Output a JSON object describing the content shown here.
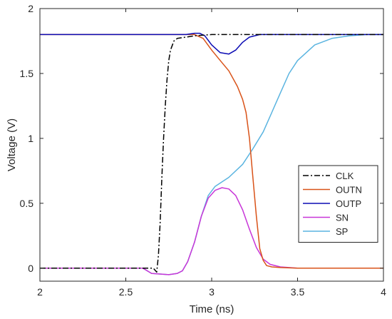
{
  "chart_data": {
    "type": "line",
    "title": "",
    "xlabel": "Time (ns)",
    "ylabel": "Voltage (V)",
    "xlim": [
      2,
      4
    ],
    "ylim": [
      -0.1,
      2
    ],
    "xticks": [
      2,
      2.5,
      3,
      3.5,
      4
    ],
    "xtick_labels": [
      "2",
      "2.5",
      "3",
      "3.5",
      "4"
    ],
    "yticks": [
      0,
      0.5,
      1,
      1.5,
      2
    ],
    "ytick_labels": [
      "0",
      "0.5",
      "1",
      "1.5",
      "2"
    ],
    "grid": false,
    "legend_position": "right",
    "series": [
      {
        "name": "CLK",
        "color": "#000000",
        "dash": "dashdot",
        "x": [
          2.0,
          2.6,
          2.62,
          2.66,
          2.68,
          2.69,
          2.7,
          2.71,
          2.72,
          2.73,
          2.74,
          2.75,
          2.76,
          2.78,
          2.8,
          2.85,
          2.9,
          3.0,
          3.1,
          3.2,
          3.3,
          3.35,
          3.4,
          4.0
        ],
        "y": [
          0.0,
          0.0,
          0.0,
          0.0,
          -0.03,
          0.1,
          0.35,
          0.7,
          1.0,
          1.25,
          1.45,
          1.6,
          1.68,
          1.75,
          1.77,
          1.78,
          1.79,
          1.8,
          1.8,
          1.8,
          1.8,
          1.8,
          1.8,
          1.8
        ]
      },
      {
        "name": "OUTN",
        "color": "#d95319",
        "dash": "solid",
        "x": [
          2.0,
          2.9,
          2.95,
          3.0,
          3.05,
          3.1,
          3.15,
          3.18,
          3.2,
          3.22,
          3.24,
          3.26,
          3.28,
          3.3,
          3.32,
          3.35,
          3.4,
          3.5,
          4.0
        ],
        "y": [
          1.8,
          1.8,
          1.77,
          1.68,
          1.6,
          1.52,
          1.4,
          1.3,
          1.2,
          1.0,
          0.7,
          0.4,
          0.15,
          0.06,
          0.02,
          0.01,
          0.005,
          0.0,
          0.0
        ]
      },
      {
        "name": "OUTP",
        "color": "#0b0bb4",
        "dash": "solid",
        "x": [
          2.0,
          2.6,
          2.85,
          2.9,
          2.93,
          2.96,
          3.0,
          3.05,
          3.1,
          3.14,
          3.18,
          3.22,
          3.28,
          3.35,
          4.0
        ],
        "y": [
          1.8,
          1.8,
          1.8,
          1.81,
          1.81,
          1.79,
          1.72,
          1.66,
          1.65,
          1.68,
          1.74,
          1.78,
          1.8,
          1.8,
          1.8
        ]
      },
      {
        "name": "SN",
        "color": "#c837d8",
        "dash": "solid",
        "x": [
          2.0,
          2.6,
          2.65,
          2.75,
          2.8,
          2.83,
          2.86,
          2.9,
          2.94,
          2.98,
          3.02,
          3.06,
          3.1,
          3.14,
          3.18,
          3.22,
          3.26,
          3.3,
          3.34,
          3.4,
          3.5,
          4.0
        ],
        "y": [
          0.0,
          0.0,
          -0.04,
          -0.05,
          -0.04,
          -0.02,
          0.05,
          0.2,
          0.4,
          0.54,
          0.6,
          0.62,
          0.61,
          0.56,
          0.45,
          0.3,
          0.16,
          0.07,
          0.03,
          0.01,
          0.0,
          0.0
        ]
      },
      {
        "name": "SP",
        "color": "#5ab4e0",
        "dash": "solid",
        "x": [
          2.0,
          2.6,
          2.65,
          2.75,
          2.8,
          2.83,
          2.86,
          2.9,
          2.94,
          2.98,
          3.02,
          3.1,
          3.18,
          3.24,
          3.3,
          3.35,
          3.4,
          3.45,
          3.5,
          3.6,
          3.7,
          3.8,
          3.9,
          4.0
        ],
        "y": [
          0.0,
          0.0,
          -0.04,
          -0.05,
          -0.04,
          -0.02,
          0.05,
          0.2,
          0.4,
          0.56,
          0.63,
          0.7,
          0.8,
          0.92,
          1.05,
          1.2,
          1.35,
          1.5,
          1.6,
          1.72,
          1.77,
          1.79,
          1.8,
          1.8
        ]
      }
    ]
  }
}
